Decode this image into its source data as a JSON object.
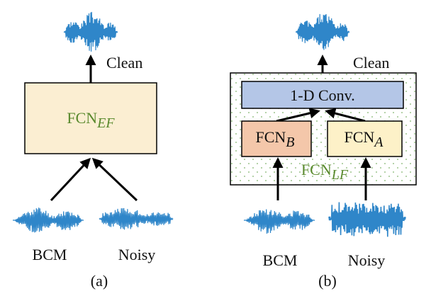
{
  "panel_a": {
    "output_label": "Clean",
    "model": {
      "base": "FCN",
      "sub": "EF"
    },
    "inputs": [
      "BCM",
      "Noisy"
    ],
    "caption": "(a)"
  },
  "panel_b": {
    "output_label": "Clean",
    "conv_label": "1-D Conv.",
    "branch_b": {
      "base": "FCN",
      "sub": "B"
    },
    "branch_a": {
      "base": "FCN",
      "sub": "A"
    },
    "fusion": {
      "base": "FCN",
      "sub": "LF"
    },
    "inputs": [
      "BCM",
      "Noisy"
    ],
    "caption": "(b)"
  },
  "colors": {
    "waveform": "#2f86c9",
    "fcn_ef_box": "#fbeed2",
    "conv_box": "#b4c6e7",
    "fcn_b_box": "#f4c7aa",
    "fcn_a_box": "#fdf1c8",
    "label_green": "#5a8a2e"
  }
}
